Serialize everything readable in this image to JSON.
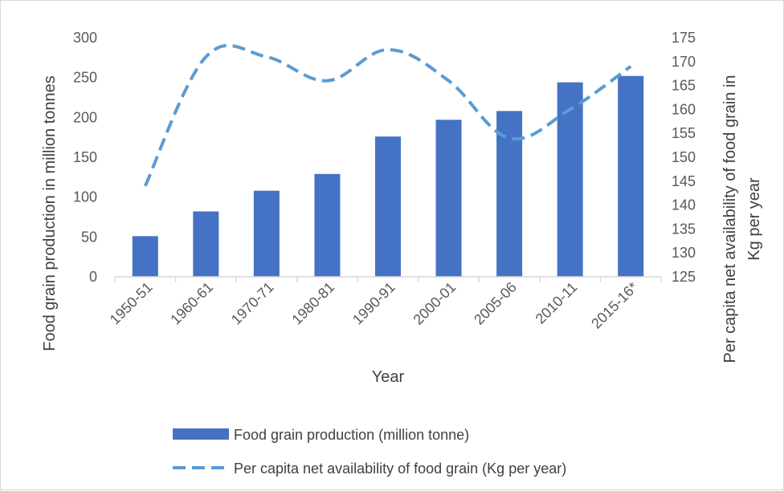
{
  "chart_data": {
    "type": "bar+line",
    "title": "",
    "categories": [
      "1950-51",
      "1960-61",
      "1970-71",
      "1980-81",
      "1990-91",
      "2000-01",
      "2005-06",
      "2010-11",
      "2015-16*"
    ],
    "series": [
      {
        "name": "Food grain production (million tonne)",
        "type": "bar",
        "axis": "left",
        "color": "#4472c4",
        "values": [
          51,
          82,
          108,
          129,
          176,
          197,
          208,
          244,
          252
        ]
      },
      {
        "name": "Per capita net availability of food grain (Kg per year)",
        "type": "line",
        "style": "dashed",
        "axis": "right",
        "color": "#5b9bd5",
        "values": [
          144,
          171,
          171,
          166,
          172.5,
          166,
          154,
          160,
          169
        ]
      }
    ],
    "xlabel": "Year",
    "ylabel_left": "Food grain production in million tonnes",
    "ylabel_right_lines": [
      "Per capita net availability of food grain in",
      "Kg per year"
    ],
    "ylim_left": [
      0,
      300
    ],
    "yticks_left": [
      0,
      50,
      100,
      150,
      200,
      250,
      300
    ],
    "ylim_right": [
      125,
      175
    ],
    "yticks_right": [
      125,
      130,
      135,
      140,
      145,
      150,
      155,
      160,
      165,
      170,
      175
    ],
    "grid": false,
    "legend": "bottom"
  }
}
